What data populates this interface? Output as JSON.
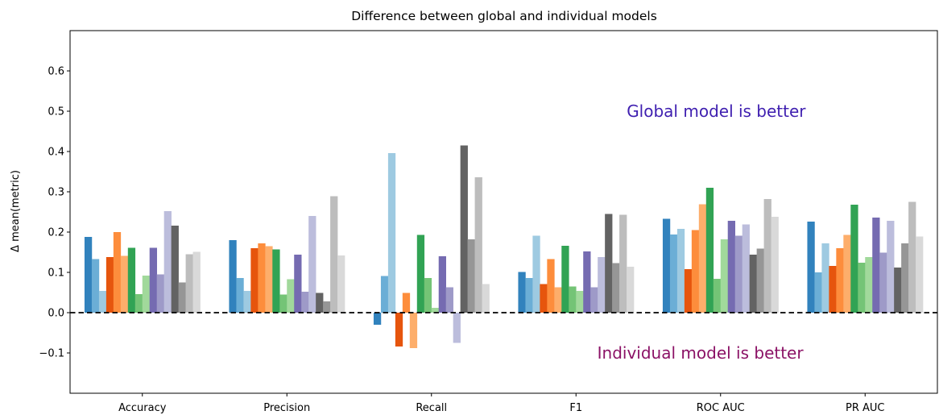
{
  "chart_data": {
    "type": "bar",
    "title": "Difference between global and individual models",
    "xlabel": "",
    "ylabel": "Δ mean(metric)",
    "ylim": [
      -0.2,
      0.7
    ],
    "yticks": [
      -0.1,
      0.0,
      0.1,
      0.2,
      0.3,
      0.4,
      0.5,
      0.6
    ],
    "ytick_labels": [
      "−0.1",
      "0.0",
      "0.1",
      "0.2",
      "0.3",
      "0.4",
      "0.5",
      "0.6"
    ],
    "categories": [
      "Accuracy",
      "Precision",
      "Recall",
      "F1",
      "ROC AUC",
      "PR AUC"
    ],
    "grid": false,
    "baseline": {
      "y": 0.0,
      "style": "dashed",
      "color": "#000000"
    },
    "annotations": [
      {
        "text": "Global model is better",
        "color": "#3f1fb0",
        "x": 3.97,
        "y": 0.5
      },
      {
        "text": "Individual model is better",
        "color": "#8b1266",
        "x": 3.86,
        "y": -0.1
      }
    ],
    "bar_colors": [
      "#3182bd",
      "#6baed6",
      "#9ecae1",
      "#e6550d",
      "#fd8d3c",
      "#fdae6b",
      "#31a354",
      "#74c476",
      "#a1d99b",
      "#756bb1",
      "#9e9ac8",
      "#bcbddc",
      "#636363",
      "#969696",
      "#bdbdbd",
      "#d9d9d9"
    ],
    "series": [
      {
        "values": [
          0.188,
          0.18,
          -0.03,
          0.101,
          0.233,
          0.226
        ]
      },
      {
        "values": [
          0.133,
          0.086,
          0.091,
          0.086,
          0.194,
          0.1
        ]
      },
      {
        "values": [
          0.054,
          0.054,
          0.396,
          0.191,
          0.208,
          0.172
        ]
      },
      {
        "values": [
          0.138,
          0.16,
          -0.084,
          0.071,
          0.108,
          0.116
        ]
      },
      {
        "values": [
          0.2,
          0.172,
          0.049,
          0.133,
          0.205,
          0.16
        ]
      },
      {
        "values": [
          0.141,
          0.165,
          -0.088,
          0.063,
          0.269,
          0.193
        ]
      },
      {
        "values": [
          0.161,
          0.157,
          0.193,
          0.166,
          0.31,
          0.268
        ]
      },
      {
        "values": [
          0.046,
          0.045,
          0.086,
          0.065,
          0.084,
          0.124
        ]
      },
      {
        "values": [
          0.092,
          0.083,
          0.012,
          0.054,
          0.182,
          0.138
        ]
      },
      {
        "values": [
          0.161,
          0.144,
          0.14,
          0.152,
          0.228,
          0.236
        ]
      },
      {
        "values": [
          0.095,
          0.052,
          0.063,
          0.063,
          0.191,
          0.149
        ]
      },
      {
        "values": [
          0.252,
          0.24,
          -0.075,
          0.138,
          0.219,
          0.228
        ]
      },
      {
        "values": [
          0.216,
          0.049,
          0.415,
          0.245,
          0.144,
          0.112
        ]
      },
      {
        "values": [
          0.075,
          0.028,
          0.182,
          0.123,
          0.159,
          0.172
        ]
      },
      {
        "values": [
          0.145,
          0.289,
          0.336,
          0.243,
          0.282,
          0.275
        ]
      },
      {
        "values": [
          0.151,
          0.142,
          0.071,
          0.114,
          0.238,
          0.189
        ]
      }
    ]
  }
}
